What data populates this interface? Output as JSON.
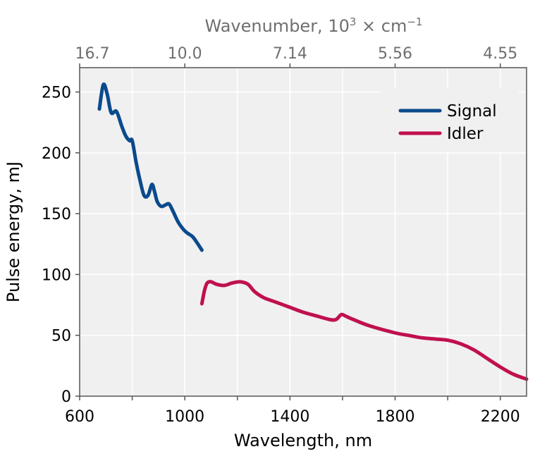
{
  "chart_data": {
    "type": "line",
    "xlabel": "Wavelength, nm",
    "ylabel": "Pulse energy, mJ",
    "top_axis_label": "Wavenumber, 10",
    "top_axis_label_sup": "3",
    "top_axis_label_suffix": " × cm",
    "top_axis_label_suffix_sup": "−1",
    "xlim": [
      600,
      2300
    ],
    "ylim": [
      0,
      270
    ],
    "x_ticks": [
      600,
      1000,
      1400,
      1800,
      2200
    ],
    "x_minor_ticks": [
      800,
      1200,
      1600,
      2000
    ],
    "y_ticks": [
      0,
      50,
      100,
      150,
      200,
      250
    ],
    "top_ticks": [
      {
        "label": "16.7",
        "at_wavelength": 600
      },
      {
        "label": "10.0",
        "at_wavelength": 1000
      },
      {
        "label": "7.14",
        "at_wavelength": 1400
      },
      {
        "label": "5.56",
        "at_wavelength": 1800
      },
      {
        "label": "4.55",
        "at_wavelength": 2200
      }
    ],
    "grid": true,
    "legend_position": "top-right",
    "series": [
      {
        "name": "Signal",
        "color": "#0b4a8c",
        "x": [
          675,
          690,
          705,
          720,
          740,
          760,
          775,
          790,
          800,
          815,
          830,
          845,
          860,
          875,
          885,
          895,
          910,
          925,
          940,
          955,
          975,
          995,
          1010,
          1030,
          1050,
          1065
        ],
        "y": [
          236,
          256,
          248,
          233,
          234,
          222,
          214,
          210,
          210,
          192,
          177,
          165,
          165,
          174,
          168,
          160,
          156,
          157,
          158,
          152,
          143,
          137,
          134,
          131,
          125,
          120
        ]
      },
      {
        "name": "Idler",
        "color": "#c0104f",
        "x": [
          1065,
          1075,
          1085,
          1100,
          1120,
          1150,
          1180,
          1210,
          1240,
          1265,
          1300,
          1350,
          1400,
          1450,
          1500,
          1550,
          1575,
          1595,
          1610,
          1630,
          1700,
          1800,
          1850,
          1900,
          1950,
          2000,
          2050,
          2100,
          2150,
          2200,
          2250,
          2300
        ],
        "y": [
          76,
          87,
          93,
          94,
          92,
          91,
          93,
          94,
          92,
          86,
          81,
          77,
          73,
          69,
          66,
          63,
          63,
          67,
          66,
          64,
          58,
          52,
          50,
          48,
          47,
          46,
          43,
          38,
          31,
          24,
          18,
          14
        ]
      }
    ]
  }
}
